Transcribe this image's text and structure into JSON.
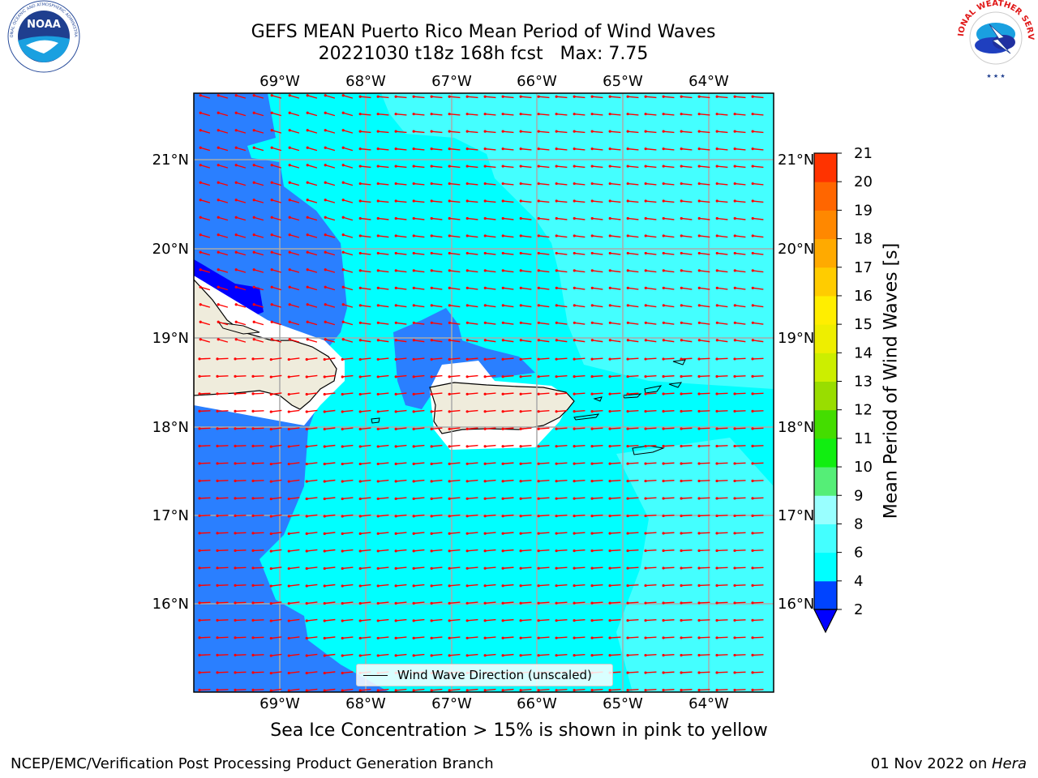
{
  "title": {
    "line1": "GEFS MEAN Puerto Rico Mean Period of Wind Waves",
    "line2": "20221030 t18z 168h fcst   Max: 7.75"
  },
  "logos": {
    "left": "noaa-logo",
    "right": "nws-logo"
  },
  "map": {
    "lon_labels": [
      "69°W",
      "68°W",
      "67°W",
      "66°W",
      "65°W",
      "64°W"
    ],
    "lat_labels": [
      "21°N",
      "20°N",
      "19°N",
      "18°N",
      "17°N",
      "16°N"
    ],
    "legend_label": "Wind Wave Direction (unscaled)",
    "arrow_color": "#ff0000",
    "land_color": "#efecdc"
  },
  "colorbar": {
    "label": "Mean Period of Wind Waves [s]",
    "ticks": [
      "2",
      "4",
      "6",
      "8",
      "9",
      "10",
      "11",
      "12",
      "13",
      "14",
      "15",
      "16",
      "17",
      "18",
      "19",
      "20",
      "21"
    ],
    "colors": [
      "#0044ff",
      "#00ffff",
      "#44ffff",
      "#99ffff",
      "#55ee77",
      "#11ee11",
      "#44dd00",
      "#99dd00",
      "#ccee00",
      "#eeee00",
      "#ffee00",
      "#ffcc00",
      "#ffaa00",
      "#ff8800",
      "#ff6600",
      "#ff3300",
      "#ff0000"
    ],
    "under_color": "#0000ff"
  },
  "ice_note": "Sea Ice Concentration > 15% is shown in pink to yellow",
  "footer": {
    "left": "NCEP/EMC/Verification Post Processing Product Generation Branch",
    "right_prefix": "01 Nov 2022 on ",
    "right_host": "Hera"
  }
}
